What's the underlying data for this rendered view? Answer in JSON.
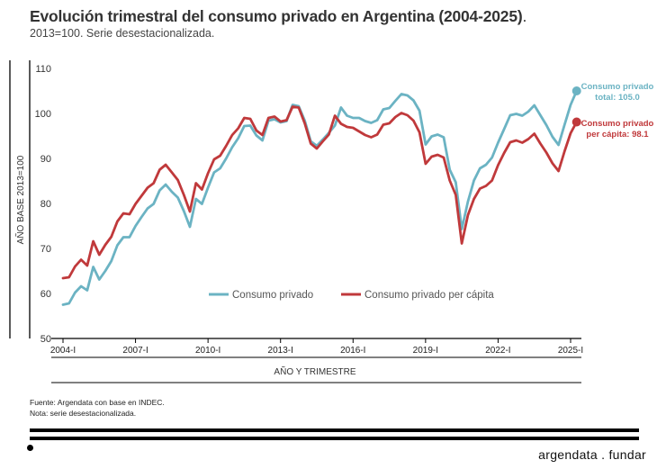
{
  "header": {
    "title": "Evolución trimestral del consumo privado en Argentina (2004-2025)",
    "title_dot": ".",
    "subtitle": "2013=100. Serie desestacionalizada."
  },
  "footer": {
    "source": "Fuente: Argendata con base en INDEC.",
    "note": "Nota: serie desestacionalizada.",
    "brand": "argendata . fundar"
  },
  "chart_data": {
    "type": "line",
    "title": "Evolución trimestral del consumo privado en Argentina (2004-2025)",
    "xlabel": "AÑO Y TRIMESTRE",
    "ylabel": "AÑO BASE 2013=100",
    "ylim": [
      50,
      110
    ],
    "yticks": [
      50,
      60,
      70,
      80,
      90,
      100,
      110
    ],
    "xticks": [
      {
        "q": 0,
        "label": "2004-I"
      },
      {
        "q": 12,
        "label": "2007-I"
      },
      {
        "q": 24,
        "label": "2010-I"
      },
      {
        "q": 36,
        "label": "2013-I"
      },
      {
        "q": 48,
        "label": "2016-I"
      },
      {
        "q": 60,
        "label": "2019-I"
      },
      {
        "q": 72,
        "label": "2022-I"
      },
      {
        "q": 84,
        "label": "2025-I"
      }
    ],
    "x_unit": "quarter index (0 = 2004-I)",
    "legend": {
      "position": "bottom-center"
    },
    "series": [
      {
        "name": "Consumo privado",
        "color": "#6bb3c3",
        "end_label_line1": "Consumo privado",
        "end_label_line2": "total: 105.0",
        "end_value": 105.0,
        "values": [
          57.5,
          57.8,
          60.2,
          61.6,
          60.7,
          65.9,
          63.1,
          65.0,
          67.2,
          70.7,
          72.5,
          72.5,
          75.0,
          77.0,
          78.9,
          79.9,
          82.9,
          84.2,
          82.6,
          81.3,
          78.3,
          74.8,
          81.0,
          79.9,
          83.5,
          86.9,
          87.8,
          90.0,
          92.5,
          94.5,
          97.2,
          97.3,
          95.1,
          94.0,
          98.4,
          98.7,
          98.0,
          98.3,
          101.9,
          101.6,
          98.4,
          93.8,
          92.8,
          94.2,
          95.7,
          97.3,
          101.3,
          99.5,
          99.0,
          99.0,
          98.3,
          97.9,
          98.5,
          100.9,
          101.2,
          102.8,
          104.3,
          104.0,
          102.9,
          100.6,
          93.1,
          94.9,
          95.3,
          94.7,
          87.5,
          84.7,
          74.3,
          80.4,
          85.1,
          87.8,
          88.6,
          90.2,
          93.5,
          96.5,
          99.6,
          99.9,
          99.5,
          100.4,
          101.8,
          99.6,
          97.4,
          94.8,
          93.0,
          97.5,
          101.9,
          105.0
        ]
      },
      {
        "name": "Consumo privado per cápita",
        "color": "#c0393b",
        "end_label_line1": "Consumo privado",
        "end_label_line2": "per cápita: 98.1",
        "end_value": 98.1,
        "values": [
          63.4,
          63.6,
          66.0,
          67.5,
          66.2,
          71.6,
          68.6,
          70.8,
          72.6,
          76.0,
          77.8,
          77.6,
          79.9,
          81.7,
          83.5,
          84.5,
          87.5,
          88.6,
          86.9,
          85.2,
          81.9,
          78.2,
          84.5,
          83.1,
          86.7,
          89.8,
          90.6,
          92.8,
          95.2,
          96.7,
          99.0,
          98.8,
          96.2,
          95.2,
          99.0,
          99.3,
          98.2,
          98.5,
          101.5,
          101.3,
          97.8,
          93.3,
          92.2,
          93.8,
          95.3,
          99.5,
          97.7,
          97.0,
          96.8,
          96.0,
          95.2,
          94.7,
          95.3,
          97.5,
          97.8,
          99.2,
          100.1,
          99.6,
          98.4,
          95.8,
          88.8,
          90.4,
          90.8,
          90.2,
          85.1,
          81.9,
          71.1,
          77.4,
          81.0,
          83.3,
          83.9,
          85.1,
          88.5,
          91.2,
          93.6,
          94.0,
          93.5,
          94.3,
          95.5,
          93.3,
          91.3,
          88.9,
          87.2,
          91.6,
          95.6,
          98.1
        ]
      }
    ]
  }
}
